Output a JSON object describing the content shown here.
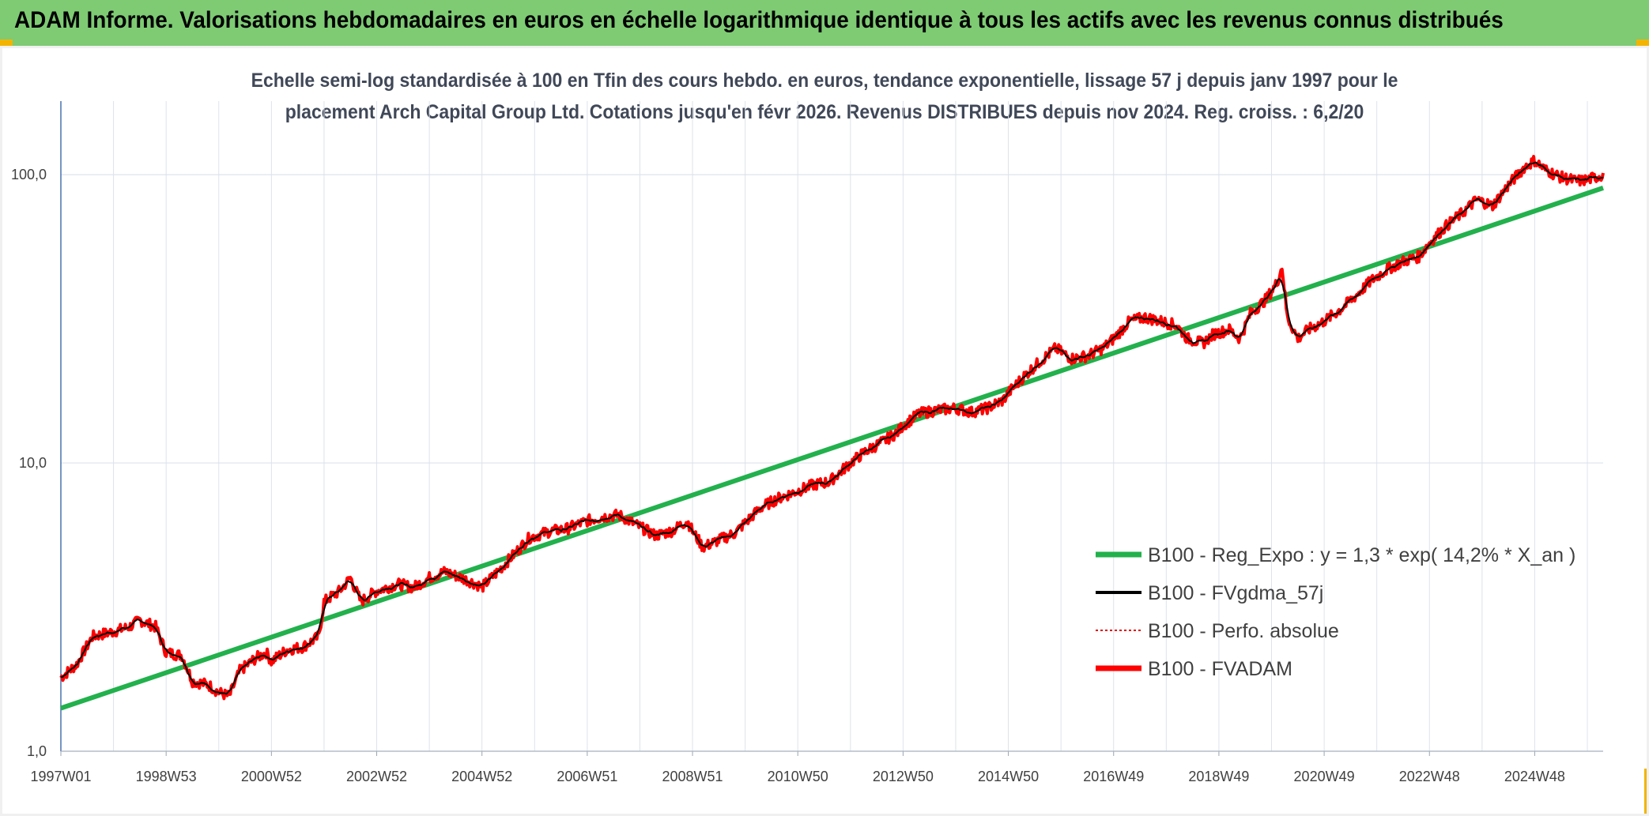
{
  "header": {
    "title": "ADAM Informe. Valorisations hebdomadaires en euros en échelle logarithmique identique à tous les actifs avec les revenus connus distribués"
  },
  "chart_data": {
    "type": "line",
    "title_line1": "Echelle semi-log standardisée à 100 en Tfin des cours hebdo. en euros, tendance exponentielle, lissage 57 j depuis janv 1997 pour le",
    "title_line2": "placement Arch Capital Group Ltd. Cotations jusqu'en févr 2026. Revenus DISTRIBUES depuis nov 2024. Reg. croiss. : 6,2/20",
    "yscale": "log",
    "ylim": [
      1,
      180
    ],
    "xlim": [
      1997.0,
      2026.3
    ],
    "grid": true,
    "legend_position": "bottom-right",
    "y_ticks": [
      {
        "value": 1,
        "label": "1,0"
      },
      {
        "value": 10,
        "label": "10,0"
      },
      {
        "value": 100,
        "label": "100,0"
      }
    ],
    "x_ticks": [
      {
        "value": 1997.0,
        "label": "1997W01"
      },
      {
        "value": 1999.0,
        "label": "1998W53"
      },
      {
        "value": 2001.0,
        "label": "2000W52"
      },
      {
        "value": 2003.0,
        "label": "2002W52"
      },
      {
        "value": 2005.0,
        "label": "2004W52"
      },
      {
        "value": 2007.0,
        "label": "2006W51"
      },
      {
        "value": 2009.0,
        "label": "2008W51"
      },
      {
        "value": 2011.0,
        "label": "2010W50"
      },
      {
        "value": 2013.0,
        "label": "2012W50"
      },
      {
        "value": 2015.0,
        "label": "2014W50"
      },
      {
        "value": 2017.0,
        "label": "2016W49"
      },
      {
        "value": 2019.0,
        "label": "2018W49"
      },
      {
        "value": 2021.0,
        "label": "2020W49"
      },
      {
        "value": 2023.0,
        "label": "2022W48"
      },
      {
        "value": 2025.0,
        "label": "2024W48"
      }
    ],
    "series": [
      {
        "name": "B100 - Reg_Expo : y = 1,3 * exp( 14,2% *  X_an )",
        "color": "#22b14c",
        "style": "solid-thick",
        "points": [
          [
            1997.0,
            1.41
          ],
          [
            2026.3,
            90
          ]
        ]
      },
      {
        "name": "B100 - FVgdma_57j",
        "color": "#000000",
        "style": "solid",
        "points": []
      },
      {
        "name": "B100 - Perfo. absolue",
        "color": "#e00000",
        "style": "dotted",
        "points": []
      },
      {
        "name": "B100 - FVADAM",
        "color": "#ff0000",
        "style": "solid-thick",
        "points": [
          [
            1997.0,
            1.8
          ],
          [
            1997.3,
            2.0
          ],
          [
            1997.6,
            2.5
          ],
          [
            1998.0,
            2.6
          ],
          [
            1998.3,
            2.7
          ],
          [
            1998.5,
            2.85
          ],
          [
            1998.8,
            2.7
          ],
          [
            1999.0,
            2.2
          ],
          [
            1999.3,
            2.15
          ],
          [
            1999.5,
            1.75
          ],
          [
            1999.8,
            1.7
          ],
          [
            2000.0,
            1.6
          ],
          [
            2000.2,
            1.55
          ],
          [
            2000.4,
            1.9
          ],
          [
            2000.7,
            2.1
          ],
          [
            2000.9,
            2.2
          ],
          [
            2001.0,
            2.05
          ],
          [
            2001.3,
            2.25
          ],
          [
            2001.6,
            2.3
          ],
          [
            2001.9,
            2.5
          ],
          [
            2002.0,
            3.3
          ],
          [
            2002.3,
            3.6
          ],
          [
            2002.5,
            4.0
          ],
          [
            2002.7,
            3.3
          ],
          [
            2002.9,
            3.5
          ],
          [
            2003.0,
            3.6
          ],
          [
            2003.4,
            3.8
          ],
          [
            2003.7,
            3.7
          ],
          [
            2004.0,
            4.0
          ],
          [
            2004.3,
            4.2
          ],
          [
            2004.6,
            4.0
          ],
          [
            2004.9,
            3.8
          ],
          [
            2005.0,
            3.7
          ],
          [
            2005.3,
            4.2
          ],
          [
            2005.6,
            4.8
          ],
          [
            2005.9,
            5.5
          ],
          [
            2006.3,
            5.8
          ],
          [
            2006.6,
            5.9
          ],
          [
            2007.0,
            6.3
          ],
          [
            2007.3,
            6.5
          ],
          [
            2007.6,
            6.6
          ],
          [
            2008.0,
            6.0
          ],
          [
            2008.3,
            5.6
          ],
          [
            2008.6,
            5.8
          ],
          [
            2008.9,
            6.3
          ],
          [
            2009.0,
            5.8
          ],
          [
            2009.2,
            5.1
          ],
          [
            2009.5,
            5.4
          ],
          [
            2009.8,
            5.7
          ],
          [
            2010.0,
            6.2
          ],
          [
            2010.3,
            7.0
          ],
          [
            2010.6,
            7.5
          ],
          [
            2011.0,
            8.0
          ],
          [
            2011.3,
            8.4
          ],
          [
            2011.6,
            8.6
          ],
          [
            2012.0,
            10.0
          ],
          [
            2012.3,
            11.0
          ],
          [
            2012.6,
            11.8
          ],
          [
            2012.9,
            12.8
          ],
          [
            2013.0,
            13.5
          ],
          [
            2013.3,
            14.8
          ],
          [
            2013.6,
            15.2
          ],
          [
            2014.0,
            15.5
          ],
          [
            2014.3,
            15.0
          ],
          [
            2014.6,
            15.5
          ],
          [
            2014.9,
            16.5
          ],
          [
            2015.0,
            17.5
          ],
          [
            2015.3,
            20.0
          ],
          [
            2015.6,
            22.5
          ],
          [
            2015.9,
            25.0
          ],
          [
            2016.2,
            23.0
          ],
          [
            2016.5,
            23.5
          ],
          [
            2016.8,
            25.0
          ],
          [
            2017.0,
            27.0
          ],
          [
            2017.3,
            31.0
          ],
          [
            2017.6,
            32.0
          ],
          [
            2017.9,
            31.0
          ],
          [
            2018.2,
            30.0
          ],
          [
            2018.4,
            27.0
          ],
          [
            2018.7,
            26.0
          ],
          [
            2018.9,
            28.0
          ],
          [
            2019.2,
            29.0
          ],
          [
            2019.4,
            27.0
          ],
          [
            2019.6,
            33.0
          ],
          [
            2019.9,
            37.0
          ],
          [
            2020.1,
            42.0
          ],
          [
            2020.2,
            48.0
          ],
          [
            2020.3,
            32.0
          ],
          [
            2020.5,
            27.0
          ],
          [
            2020.7,
            29.0
          ],
          [
            2021.0,
            31.0
          ],
          [
            2021.3,
            34.0
          ],
          [
            2021.6,
            38.0
          ],
          [
            2021.9,
            43.0
          ],
          [
            2022.2,
            47.0
          ],
          [
            2022.5,
            50.0
          ],
          [
            2022.8,
            52.0
          ],
          [
            2023.0,
            58.0
          ],
          [
            2023.3,
            66.0
          ],
          [
            2023.6,
            73.0
          ],
          [
            2023.9,
            82.0
          ],
          [
            2024.2,
            78.0
          ],
          [
            2024.5,
            92.0
          ],
          [
            2024.8,
            106.0
          ],
          [
            2025.0,
            112.0
          ],
          [
            2025.2,
            104.0
          ],
          [
            2025.5,
            98.0
          ],
          [
            2025.8,
            95.0
          ],
          [
            2026.0,
            96.0
          ],
          [
            2026.3,
            100.0
          ]
        ]
      }
    ]
  }
}
